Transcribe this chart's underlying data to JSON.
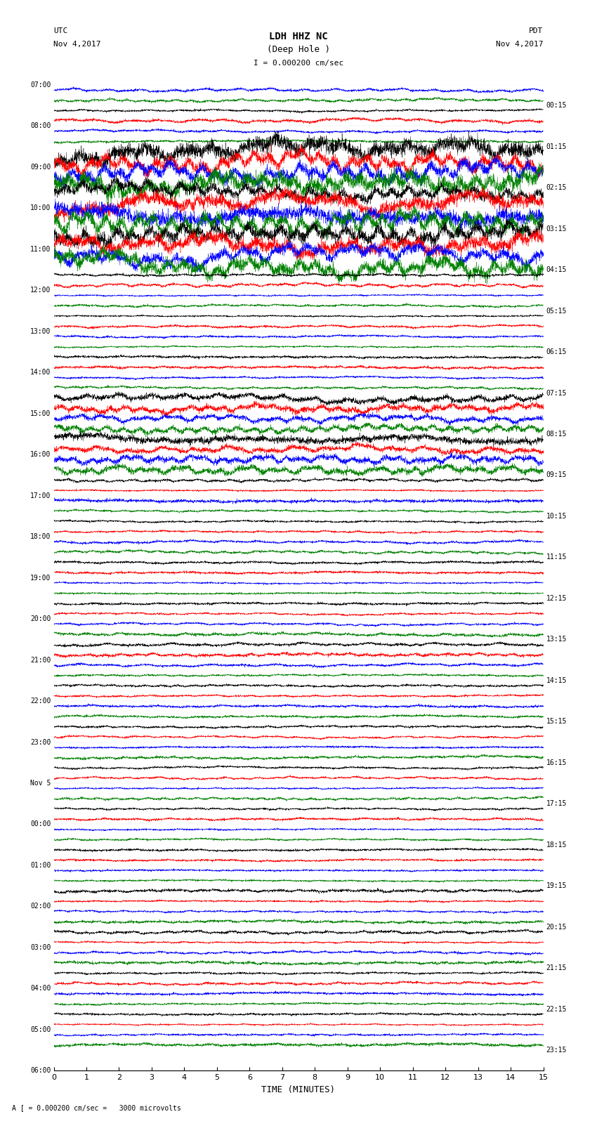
{
  "title_line1": "LDH HHZ NC",
  "title_line2": "(Deep Hole )",
  "scale_label": "I = 0.000200 cm/sec",
  "utc_label": "UTC",
  "pdt_label": "PDT",
  "date_left": "Nov 4,2017",
  "date_right": "Nov 4,2017",
  "bottom_label": "A [ = 0.000200 cm/sec =   3000 microvolts",
  "xlabel": "TIME (MINUTES)",
  "bg_color": "#ffffff",
  "trace_colors": [
    "black",
    "red",
    "blue",
    "green"
  ],
  "left_times": [
    "07:00",
    "08:00",
    "09:00",
    "10:00",
    "11:00",
    "12:00",
    "13:00",
    "14:00",
    "15:00",
    "16:00",
    "17:00",
    "18:00",
    "19:00",
    "20:00",
    "21:00",
    "22:00",
    "23:00",
    "Nov 5",
    "00:00",
    "01:00",
    "02:00",
    "03:00",
    "04:00",
    "05:00",
    "06:00"
  ],
  "right_times": [
    "00:15",
    "01:15",
    "02:15",
    "03:15",
    "04:15",
    "05:15",
    "06:15",
    "07:15",
    "08:15",
    "09:15",
    "10:15",
    "11:15",
    "12:15",
    "13:15",
    "14:15",
    "15:15",
    "16:15",
    "17:15",
    "18:15",
    "19:15",
    "20:15",
    "21:15",
    "22:15",
    "23:15"
  ],
  "n_rows": 24,
  "n_traces_per_row": 4,
  "minutes": 15,
  "fig_width": 8.5,
  "fig_height": 16.13,
  "dpi": 100,
  "earthquake_rows": [
    2,
    3,
    4
  ],
  "large_signal_rows": [
    8,
    9
  ]
}
